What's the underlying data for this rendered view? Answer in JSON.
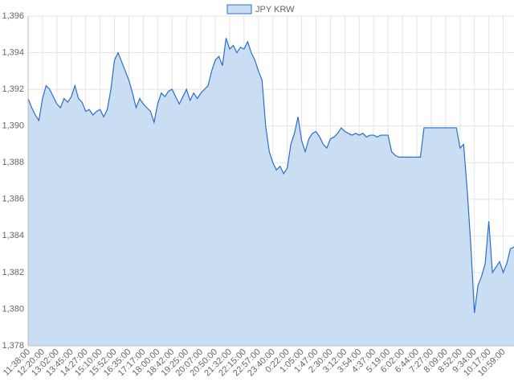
{
  "chart_data": {
    "type": "area",
    "categories": [
      "11:38:00",
      null,
      null,
      null,
      "12:20:00",
      null,
      null,
      null,
      "13:02:00",
      null,
      null,
      null,
      "13:45:00",
      null,
      null,
      null,
      "14:27:00",
      null,
      null,
      null,
      "15:10:00",
      null,
      null,
      null,
      "15:52:00",
      null,
      null,
      null,
      "16:35:00",
      null,
      null,
      null,
      "17:17:00",
      null,
      null,
      null,
      "18:00:00",
      null,
      null,
      null,
      "18:42:00",
      null,
      null,
      null,
      "19:25:00",
      null,
      null,
      null,
      "20:07:00",
      null,
      null,
      null,
      "20:50:00",
      null,
      null,
      null,
      "21:32:00",
      null,
      null,
      null,
      "22:15:00",
      null,
      null,
      null,
      "22:57:00",
      null,
      null,
      null,
      "23:40:00",
      null,
      null,
      null,
      "0:22:00",
      null,
      null,
      null,
      "1:05:00",
      null,
      null,
      null,
      "1:47:00",
      null,
      null,
      null,
      "2:30:00",
      null,
      null,
      null,
      "3:12:00",
      null,
      null,
      null,
      "3:54:00",
      null,
      null,
      null,
      "4:37:00",
      null,
      null,
      null,
      "5:19:00",
      null,
      null,
      null,
      "6:02:00",
      null,
      null,
      null,
      "6:44:00",
      null,
      null,
      null,
      "7:27:00",
      null,
      null,
      null,
      "8:09:00",
      null,
      null,
      null,
      "8:52:00",
      null,
      null,
      null,
      "9:34:00",
      null,
      null,
      null,
      "10:17:00",
      null,
      null,
      null,
      "10:59:00",
      null,
      null,
      null
    ],
    "series": [
      {
        "name": "JPY KRW",
        "color": "#2a6fc9",
        "fill": "#c9ddf3",
        "values": [
          1391.5,
          1391.0,
          1390.6,
          1390.3,
          1391.5,
          1392.2,
          1392.0,
          1391.6,
          1391.2,
          1391.0,
          1391.5,
          1391.3,
          1391.6,
          1392.2,
          1391.5,
          1391.3,
          1390.8,
          1390.9,
          1390.6,
          1390.8,
          1390.9,
          1390.5,
          1390.9,
          1392.0,
          1393.6,
          1394.0,
          1393.5,
          1393.0,
          1392.5,
          1391.8,
          1391.0,
          1391.5,
          1391.2,
          1391.0,
          1390.8,
          1390.2,
          1391.2,
          1391.8,
          1391.6,
          1391.9,
          1392.0,
          1391.6,
          1391.2,
          1391.6,
          1392.0,
          1391.4,
          1391.8,
          1391.5,
          1391.8,
          1392.0,
          1392.2,
          1393.0,
          1393.6,
          1393.8,
          1393.3,
          1394.8,
          1394.2,
          1394.4,
          1394.0,
          1394.3,
          1394.2,
          1394.6,
          1394.0,
          1393.6,
          1393.0,
          1392.5,
          1390.0,
          1388.6,
          1388.0,
          1387.6,
          1387.8,
          1387.4,
          1387.7,
          1389.0,
          1389.6,
          1390.5,
          1389.2,
          1388.6,
          1389.3,
          1389.6,
          1389.7,
          1389.4,
          1389.0,
          1388.8,
          1389.3,
          1389.4,
          1389.6,
          1389.9,
          1389.7,
          1389.6,
          1389.5,
          1389.6,
          1389.5,
          1389.6,
          1389.4,
          1389.5,
          1389.5,
          1389.4,
          1389.5,
          1389.5,
          1389.5,
          1388.6,
          1388.4,
          1388.3,
          1388.3,
          1388.3,
          1388.3,
          1388.3,
          1388.3,
          1388.3,
          1389.9,
          1389.9,
          1389.9,
          1389.9,
          1389.9,
          1389.9,
          1389.9,
          1389.9,
          1389.9,
          1389.9,
          1388.8,
          1389.0,
          1386.5,
          1383.5,
          1379.8,
          1381.3,
          1381.8,
          1382.5,
          1384.8,
          1382.0,
          1382.3,
          1382.6,
          1382.0,
          1382.5,
          1383.3,
          1383.4
        ]
      }
    ],
    "ylim": [
      1378,
      1396
    ],
    "yticks": [
      {
        "value": 1378,
        "label": "1,378"
      },
      {
        "value": 1380,
        "label": "1,380"
      },
      {
        "value": 1382,
        "label": "1,382"
      },
      {
        "value": 1384,
        "label": "1,384"
      },
      {
        "value": 1386,
        "label": "1,386"
      },
      {
        "value": 1388,
        "label": "1,388"
      },
      {
        "value": 1390,
        "label": "1,390"
      },
      {
        "value": 1392,
        "label": "1,392"
      },
      {
        "value": 1394,
        "label": "1,394"
      },
      {
        "value": 1396,
        "label": "1,396"
      }
    ],
    "grid": true,
    "legend": "top"
  }
}
